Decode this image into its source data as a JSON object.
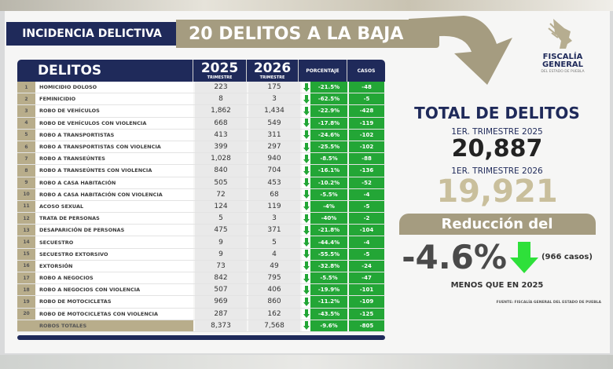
{
  "header": {
    "left": "INCIDENCIA DELICTIVA",
    "banner": "20 DELITOS A LA BAJA"
  },
  "logo": {
    "line1": "FISCALÍA",
    "line2": "GENERAL",
    "line3": "DEL ESTADO DE PUEBLA"
  },
  "table": {
    "headers": {
      "delitos": "DELITOS",
      "y2025": "2025",
      "y2026": "2026",
      "trimestre": "TRIMESTRE",
      "porcentaje": "PORCENTAJE",
      "casos": "CASOS"
    },
    "rows": [
      [
        "1",
        "HOMICIDIO DOLOSO",
        "223",
        "175",
        "-21.5%",
        "-48"
      ],
      [
        "2",
        "FEMINICIDIO",
        "8",
        "3",
        "-62.5%",
        "-5"
      ],
      [
        "3",
        "ROBO DE VEHÍCULOS",
        "1,862",
        "1,434",
        "-22.9%",
        "-428"
      ],
      [
        "4",
        "ROBO DE VEHÍCULOS CON VIOLENCIA",
        "668",
        "549",
        "-17.8%",
        "-119"
      ],
      [
        "5",
        "ROBO A TRANSPORTISTAS",
        "413",
        "311",
        "-24.6%",
        "-102"
      ],
      [
        "6",
        "ROBO A TRANSPORTISTAS CON VIOLENCIA",
        "399",
        "297",
        "-25.5%",
        "-102"
      ],
      [
        "7",
        "ROBO A TRANSEÚNTES",
        "1,028",
        "940",
        "-8.5%",
        "-88"
      ],
      [
        "8",
        "ROBO A TRANSEÚNTES CON VIOLENCIA",
        "840",
        "704",
        "-16.1%",
        "-136"
      ],
      [
        "9",
        "ROBO A CASA HABITACIÓN",
        "505",
        "453",
        "-10.2%",
        "-52"
      ],
      [
        "10",
        "ROBO A CASA HABITACIÓN CON VIOLENCIA",
        "72",
        "68",
        "-5.5%",
        "-4"
      ],
      [
        "11",
        "ACOSO SEXUAL",
        "124",
        "119",
        "-4%",
        "-5"
      ],
      [
        "12",
        "TRATA DE PERSONAS",
        "5",
        "3",
        "-40%",
        "-2"
      ],
      [
        "13",
        "DESAPARICIÓN DE PERSONAS",
        "475",
        "371",
        "-21.8%",
        "-104"
      ],
      [
        "14",
        "SECUESTRO",
        "9",
        "5",
        "-44.4%",
        "-4"
      ],
      [
        "15",
        "SECUESTRO EXTORSIVO",
        "9",
        "4",
        "-55.5%",
        "-5"
      ],
      [
        "16",
        "EXTORSIÓN",
        "73",
        "49",
        "-32.8%",
        "-24"
      ],
      [
        "17",
        "ROBO A NEGOCIOS",
        "842",
        "795",
        "-5.5%",
        "-47"
      ],
      [
        "18",
        "ROBO A NEGOCIOS CON VIOLENCIA",
        "507",
        "406",
        "-19.9%",
        "-101"
      ],
      [
        "19",
        "ROBO DE MOTOCICLETAS",
        "969",
        "860",
        "-11.2%",
        "-109"
      ],
      [
        "20",
        "ROBO DE MOTOCICLETAS CON VIOLENCIA",
        "287",
        "162",
        "-43.5%",
        "-125"
      ]
    ],
    "total": [
      "",
      "ROBOS TOTALES",
      "8,373",
      "7,568",
      "-9.6%",
      "-805"
    ]
  },
  "summary": {
    "title": "TOTAL DE DELITOS",
    "label2025": "1ER. TRIMESTRE 2025",
    "total2025": "20,887",
    "label2026": "1ER. TRIMESTRE 2026",
    "total2026": "19,921",
    "reduction_label": "Reducción del",
    "reduction_pct": "-4.6%",
    "reduction_cases": "(966 casos)",
    "menos": "MENOS QUE EN 2025",
    "fuente": "FUENTE: FISCALÍA GENERAL DEL ESTADO DE PUEBLA"
  },
  "colors": {
    "navy": "#1f2a5a",
    "tan": "#a59c80",
    "green": "#23a636"
  }
}
